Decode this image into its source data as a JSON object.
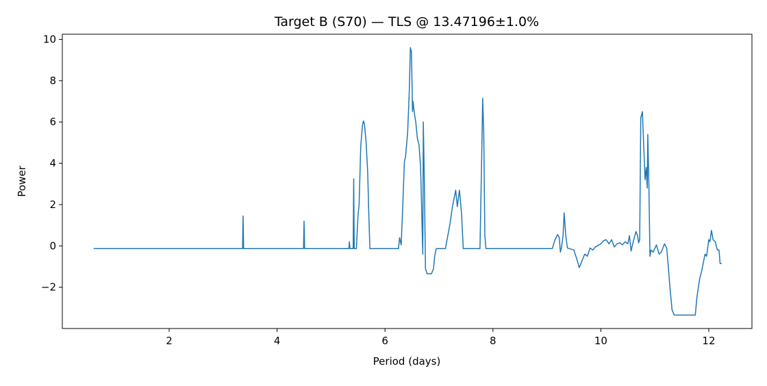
{
  "chart_data": {
    "type": "line",
    "title": "Target B (S70) — TLS @ 13.47196±1.0%",
    "x_label": "Period (days)",
    "y_label": "Power",
    "color": "#1f77b4",
    "xlim": [
      0.02,
      12.8
    ],
    "ylim": [
      -4.0,
      10.25
    ],
    "xticks": [
      2,
      4,
      6,
      8,
      10,
      12
    ],
    "yticks": [
      {
        "value": -2,
        "label": "−2"
      },
      0,
      2,
      4,
      6,
      8,
      10
    ],
    "x": [
      0.6,
      3.36,
      3.37,
      3.38,
      4.49,
      4.5,
      4.51,
      5.33,
      5.34,
      5.35,
      5.41,
      5.42,
      5.43,
      5.47,
      5.5,
      5.52,
      5.55,
      5.58,
      5.6,
      5.62,
      5.65,
      5.68,
      5.7,
      5.72,
      6.25,
      6.27,
      6.3,
      6.33,
      6.36,
      6.38,
      6.42,
      6.45,
      6.47,
      6.49,
      6.51,
      6.52,
      6.54,
      6.57,
      6.6,
      6.63,
      6.66,
      6.7,
      6.71,
      6.73,
      6.75,
      6.78,
      6.86,
      6.9,
      6.92,
      6.95,
      7.12,
      7.15,
      7.2,
      7.25,
      7.31,
      7.34,
      7.38,
      7.42,
      7.45,
      7.76,
      7.79,
      7.81,
      7.83,
      7.85,
      7.87,
      9.1,
      9.15,
      9.2,
      9.23,
      9.25,
      9.27,
      9.3,
      9.32,
      9.35,
      9.38,
      9.5,
      9.55,
      9.6,
      9.64,
      9.7,
      9.75,
      9.8,
      9.85,
      9.9,
      10.0,
      10.05,
      10.1,
      10.15,
      10.2,
      10.25,
      10.3,
      10.35,
      10.4,
      10.45,
      10.5,
      10.53,
      10.56,
      10.6,
      10.65,
      10.68,
      10.7,
      10.72,
      10.74,
      10.77,
      10.8,
      10.82,
      10.84,
      10.86,
      10.87,
      10.89,
      10.91,
      10.93,
      10.97,
      11.03,
      11.08,
      11.12,
      11.18,
      11.22,
      11.25,
      11.28,
      11.32,
      11.36,
      11.75,
      11.78,
      11.83,
      11.87,
      11.93,
      11.96,
      12.0,
      12.02,
      12.05,
      12.08,
      12.12,
      12.16,
      12.19,
      12.21,
      12.24
    ],
    "values": [
      -0.13,
      -0.13,
      1.45,
      -0.13,
      -0.13,
      1.2,
      -0.13,
      -0.13,
      0.2,
      -0.13,
      -0.13,
      3.25,
      -0.13,
      -0.13,
      1.5,
      2.0,
      4.8,
      5.8,
      6.05,
      5.9,
      5.0,
      3.5,
      1.5,
      -0.13,
      -0.13,
      0.4,
      0.05,
      2.0,
      4.1,
      4.3,
      5.5,
      7.5,
      9.6,
      9.4,
      6.5,
      7.0,
      6.5,
      6.0,
      5.2,
      4.9,
      3.8,
      -0.4,
      6.0,
      3.0,
      -1.1,
      -1.35,
      -1.35,
      -1.1,
      -0.5,
      -0.13,
      -0.13,
      0.3,
      1.0,
      1.9,
      2.7,
      1.9,
      2.7,
      1.5,
      -0.13,
      -0.13,
      4.0,
      7.15,
      5.5,
      0.5,
      -0.13,
      -0.13,
      0.3,
      0.55,
      0.4,
      -0.3,
      -0.1,
      0.5,
      1.6,
      0.5,
      -0.1,
      -0.2,
      -0.6,
      -1.05,
      -0.8,
      -0.4,
      -0.5,
      -0.1,
      -0.2,
      -0.05,
      0.1,
      0.25,
      0.3,
      0.1,
      0.3,
      -0.05,
      0.1,
      0.15,
      0.05,
      0.2,
      0.1,
      0.5,
      -0.25,
      0.2,
      0.7,
      0.5,
      0.15,
      0.3,
      6.2,
      6.5,
      4.5,
      3.2,
      3.8,
      2.8,
      5.4,
      3.0,
      -0.5,
      -0.2,
      -0.3,
      0.05,
      -0.4,
      -0.3,
      0.1,
      -0.1,
      -1.0,
      -2.0,
      -3.1,
      -3.35,
      -3.35,
      -2.5,
      -1.6,
      -1.2,
      -0.4,
      -0.5,
      0.3,
      0.2,
      0.75,
      0.3,
      0.2,
      -0.2,
      -0.2,
      -0.85,
      -0.85
    ]
  }
}
